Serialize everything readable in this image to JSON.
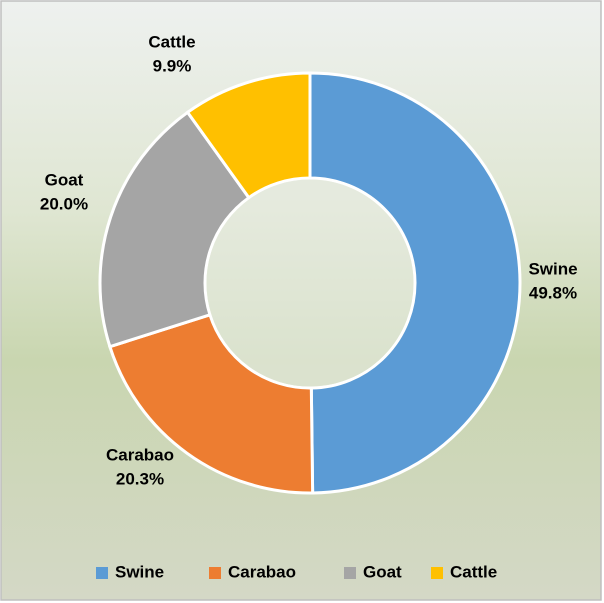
{
  "chart_data": {
    "type": "donut",
    "categories": [
      "Swine",
      "Carabao",
      "Goat",
      "Cattle"
    ],
    "values": [
      49.8,
      20.3,
      20.0,
      9.9
    ],
    "value_labels": [
      "49.8%",
      "20.3%",
      "20.0%",
      "9.9%"
    ],
    "colors": [
      "#5b9bd5",
      "#ed7d31",
      "#a5a5a5",
      "#ffc000"
    ],
    "legend": "bottom"
  }
}
